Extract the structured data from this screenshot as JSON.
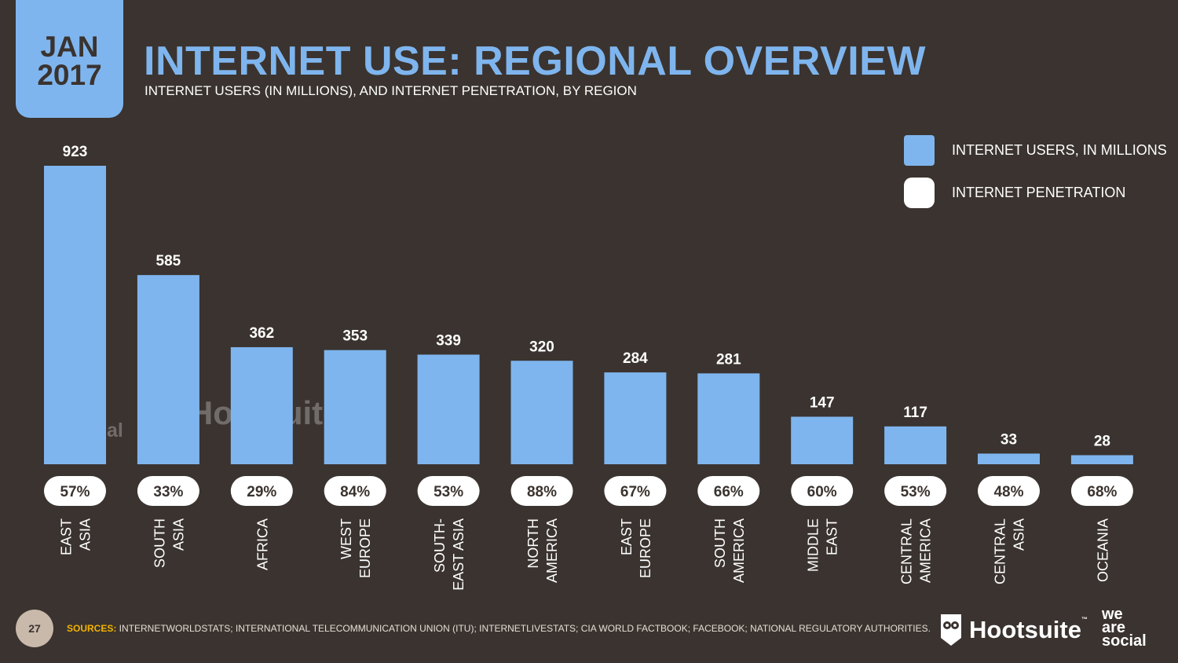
{
  "badge": {
    "month": "JAN",
    "year": "2017"
  },
  "header": {
    "title": "INTERNET USE: REGIONAL OVERVIEW",
    "subtitle": "INTERNET USERS (IN MILLIONS), AND INTERNET PENETRATION, BY REGION"
  },
  "legend": {
    "users_label": "INTERNET USERS, IN MILLIONS",
    "penetration_label": "INTERNET PENETRATION"
  },
  "colors": {
    "bar": "#7fb5ee",
    "background": "#3a332f",
    "pill": "#ffffff",
    "accent": "#f2b300"
  },
  "watermark": {
    "we_line1": "we",
    "we_line2": "are",
    "we_line3": "social",
    "hootsuite": "Hootsuite"
  },
  "chart_data": {
    "type": "bar",
    "title": "INTERNET USE: REGIONAL OVERVIEW",
    "categories": [
      [
        "EAST",
        "ASIA"
      ],
      [
        "SOUTH",
        "ASIA"
      ],
      [
        "AFRICA"
      ],
      [
        "WEST",
        "EUROPE"
      ],
      [
        "SOUTH-",
        "EAST ASIA"
      ],
      [
        "NORTH",
        "AMERICA"
      ],
      [
        "EAST",
        "EUROPE"
      ],
      [
        "SOUTH",
        "AMERICA"
      ],
      [
        "MIDDLE",
        "EAST"
      ],
      [
        "CENTRAL",
        "AMERICA"
      ],
      [
        "CENTRAL",
        "ASIA"
      ],
      [
        "OCEANIA"
      ]
    ],
    "series": [
      {
        "name": "INTERNET USERS, IN MILLIONS",
        "values": [
          923,
          585,
          362,
          353,
          339,
          320,
          284,
          281,
          147,
          117,
          33,
          28
        ]
      },
      {
        "name": "INTERNET PENETRATION",
        "values": [
          "57%",
          "33%",
          "29%",
          "84%",
          "53%",
          "88%",
          "67%",
          "66%",
          "60%",
          "53%",
          "48%",
          "68%"
        ]
      }
    ],
    "ylim": [
      0,
      923
    ],
    "grid": false,
    "legend_position": "top-right"
  },
  "footer": {
    "page_number": "27",
    "sources_label": "SOURCES:",
    "sources_text": " INTERNETWORLDSTATS; INTERNATIONAL TELECOMMUNICATION UNION (ITU); INTERNETLIVESTATS; CIA WORLD FACTBOOK; FACEBOOK; NATIONAL REGULATORY AUTHORITIES.",
    "hootsuite": "Hootsuite",
    "tm": "™",
    "was1": "we",
    "was2": "are",
    "was3": "social"
  }
}
